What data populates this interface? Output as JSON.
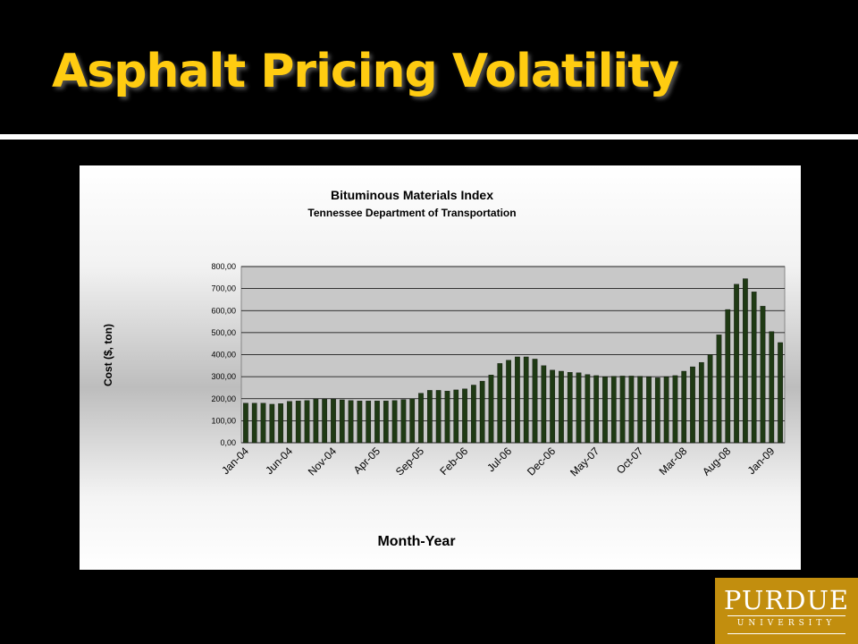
{
  "slide": {
    "title": "Asphalt Pricing Volatility",
    "title_color": "#FFCC11",
    "background_color": "#000000"
  },
  "logo": {
    "name": "PURDUE",
    "subtitle": "UNIVERSITY",
    "color": "#C28E0E"
  },
  "chart_data": {
    "type": "bar",
    "title": "Bituminous Materials Index",
    "subtitle": "Tennessee Department of Transportation",
    "xlabel": "Month-Year",
    "ylabel": "Cost ($, ton)",
    "ylim": [
      0,
      800
    ],
    "yticks": [
      "0,00",
      "100,00",
      "200,00",
      "300,00",
      "400,00",
      "500,00",
      "600,00",
      "700,00",
      "800,00"
    ],
    "grid": true,
    "legend": "none",
    "bar_color": "#1F3A14",
    "x_tick_labels": [
      "Jan-04",
      "Jun-04",
      "Nov-04",
      "Apr-05",
      "Sep-05",
      "Feb-06",
      "Jul-06",
      "Dec-06",
      "May-07",
      "Oct-07",
      "Mar-08",
      "Aug-08",
      "Jan-09"
    ],
    "values": [
      180,
      180,
      180,
      175,
      178,
      188,
      190,
      192,
      198,
      198,
      198,
      195,
      192,
      190,
      190,
      190,
      190,
      192,
      196,
      200,
      225,
      238,
      238,
      235,
      240,
      245,
      262,
      280,
      308,
      360,
      375,
      390,
      390,
      380,
      350,
      330,
      325,
      320,
      318,
      310,
      305,
      300,
      302,
      303,
      303,
      302,
      300,
      295,
      300,
      305,
      325,
      345,
      365,
      400,
      490,
      605,
      720,
      745,
      685,
      620,
      505,
      455
    ]
  }
}
